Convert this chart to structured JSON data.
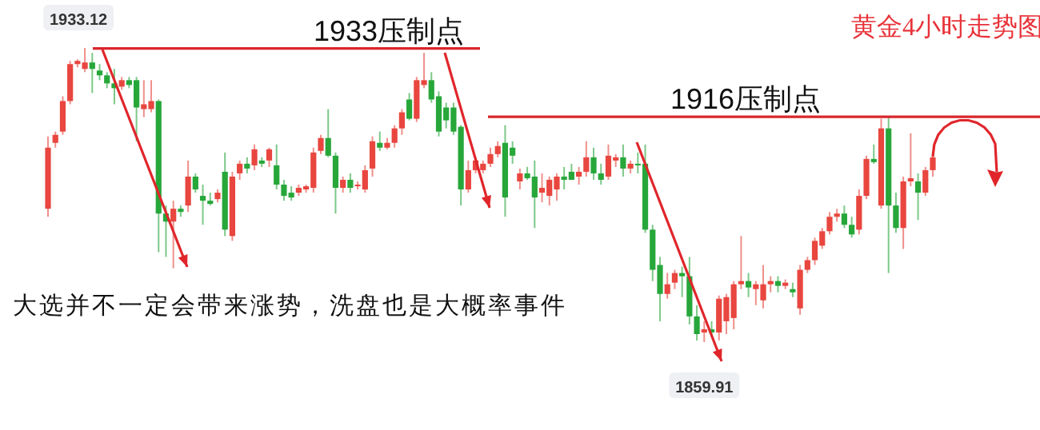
{
  "chart_data": {
    "type": "candlestick",
    "title": "黄金4小时走势图",
    "categories": [
      null,
      null,
      null,
      null,
      null,
      null,
      null,
      null,
      null,
      null,
      null,
      null,
      null,
      null,
      null,
      null,
      null,
      null,
      null,
      null,
      null,
      null,
      null,
      null,
      null,
      null,
      null,
      null,
      null,
      null,
      null,
      null,
      null,
      null,
      null,
      null,
      null,
      null,
      null,
      null,
      null,
      null,
      null,
      null,
      null,
      null,
      null,
      null,
      null,
      null,
      null,
      null,
      null,
      null,
      null,
      null,
      null,
      null,
      null,
      null,
      null,
      null,
      null,
      null,
      null,
      null,
      null,
      null,
      null,
      null,
      null,
      null,
      null,
      null,
      null,
      null,
      null,
      null,
      null,
      null,
      null,
      null,
      null,
      null,
      null,
      null,
      null,
      null,
      null,
      null,
      null,
      null,
      null,
      null,
      null,
      null,
      null,
      null,
      null,
      null,
      null,
      null,
      null,
      null,
      null,
      null,
      null,
      null,
      null,
      null,
      null,
      null,
      null,
      null,
      null,
      null,
      null,
      null,
      null,
      null,
      null
    ],
    "ohlc": [
      [
        1893.1,
        1911.1,
        1891.1,
        1908.3
      ],
      [
        1909.5,
        1912.3,
        1908.3,
        1911.5
      ],
      [
        1912.3,
        1921.1,
        1911.5,
        1919.9
      ],
      [
        1919.9,
        1929.9,
        1919.1,
        1929.1
      ],
      [
        1929.1,
        1930.3,
        1928.3,
        1929.9
      ],
      [
        1927.9,
        1933.12,
        1927.1,
        1929.5
      ],
      [
        1929.5,
        1931.9,
        1921.9,
        1927.9
      ],
      [
        1927.5,
        1929.1,
        1925.1,
        1926.3
      ],
      [
        1926.3,
        1927.1,
        1923.1,
        1924.3
      ],
      [
        1924.3,
        1927.9,
        1919.1,
        1923.1
      ],
      [
        1923.5,
        1925.9,
        1922.7,
        1925.1
      ],
      [
        1925.1,
        1925.9,
        1923.1,
        1923.9
      ],
      [
        1925.1,
        1925.9,
        1909.9,
        1918.3
      ],
      [
        1917.9,
        1925.1,
        1915.9,
        1919.1
      ],
      [
        1917.9,
        1925.1,
        1917.1,
        1919.9
      ],
      [
        1919.9,
        1920.3,
        1882.3,
        1891.9
      ],
      [
        1891.9,
        1893.9,
        1881.1,
        1889.9
      ],
      [
        1889.9,
        1895.1,
        1878.3,
        1893.1
      ],
      [
        1893.1,
        1893.9,
        1891.1,
        1892.3
      ],
      [
        1893.9,
        1905.1,
        1892.3,
        1901.1
      ],
      [
        1901.1,
        1901.9,
        1897.1,
        1897.9
      ],
      [
        1896.3,
        1899.1,
        1889.1,
        1895.1
      ],
      [
        1895.1,
        1897.1,
        1893.9,
        1894.3
      ],
      [
        1895.5,
        1897.9,
        1894.7,
        1897.1
      ],
      [
        1902.3,
        1907.1,
        1886.3,
        1887.9
      ],
      [
        1886.3,
        1902.3,
        1885.1,
        1901.1
      ],
      [
        1901.9,
        1905.1,
        1900.3,
        1904.3
      ],
      [
        1904.3,
        1905.9,
        1901.9,
        1903.1
      ],
      [
        1903.9,
        1909.1,
        1902.7,
        1907.9
      ],
      [
        1905.1,
        1905.9,
        1903.5,
        1904.3
      ],
      [
        1905.1,
        1908.3,
        1903.5,
        1907.9
      ],
      [
        1903.9,
        1909.1,
        1897.9,
        1899.1
      ],
      [
        1899.1,
        1900.3,
        1895.1,
        1896.3
      ],
      [
        1897.1,
        1898.7,
        1895.1,
        1895.9
      ],
      [
        1897.1,
        1899.1,
        1896.3,
        1898.3
      ],
      [
        1897.9,
        1899.1,
        1897.1,
        1898.7
      ],
      [
        1898.3,
        1908.3,
        1897.1,
        1907.1
      ],
      [
        1907.5,
        1911.5,
        1906.7,
        1910.7
      ],
      [
        1910.7,
        1917.9,
        1905.9,
        1906.3
      ],
      [
        1906.3,
        1907.1,
        1891.9,
        1898.3
      ],
      [
        1898.3,
        1901.1,
        1897.1,
        1900.3
      ],
      [
        1900.3,
        1901.9,
        1897.1,
        1898.3
      ],
      [
        1898.7,
        1899.9,
        1897.9,
        1899.1
      ],
      [
        1897.9,
        1903.9,
        1897.1,
        1902.7
      ],
      [
        1903.1,
        1911.1,
        1901.1,
        1909.9
      ],
      [
        1909.5,
        1912.3,
        1907.5,
        1908.3
      ],
      [
        1908.3,
        1910.7,
        1907.9,
        1909.5
      ],
      [
        1909.5,
        1913.9,
        1908.3,
        1913.1
      ],
      [
        1913.1,
        1917.9,
        1911.5,
        1917.1
      ],
      [
        1920.3,
        1921.9,
        1915.1,
        1915.5
      ],
      [
        1915.5,
        1925.9,
        1914.7,
        1925.1
      ],
      [
        1923.9,
        1931.9,
        1923.1,
        1925.1
      ],
      [
        1925.1,
        1927.1,
        1919.5,
        1920.3
      ],
      [
        1921.1,
        1922.3,
        1911.1,
        1912.3
      ],
      [
        1918.3,
        1919.5,
        1913.1,
        1915.1
      ],
      [
        1918.3,
        1919.5,
        1911.5,
        1912.3
      ],
      [
        1913.5,
        1913.9,
        1893.9,
        1897.9
      ],
      [
        1897.9,
        1905.1,
        1897.1,
        1902.7
      ],
      [
        1902.7,
        1905.9,
        1901.9,
        1905.1
      ],
      [
        1902.7,
        1905.1,
        1901.9,
        1904.3
      ],
      [
        1904.3,
        1908.3,
        1903.5,
        1906.7
      ],
      [
        1906.7,
        1909.9,
        1905.9,
        1908.7
      ],
      [
        1909.5,
        1913.9,
        1891.1,
        1895.9
      ],
      [
        1908.3,
        1909.9,
        1904.3,
        1906.3
      ],
      [
        1899.9,
        1903.1,
        1897.9,
        1901.9
      ],
      [
        1901.9,
        1903.5,
        1900.3,
        1900.7
      ],
      [
        1901.1,
        1905.1,
        1888.3,
        1895.9
      ],
      [
        1897.1,
        1901.9,
        1894.7,
        1898.3
      ],
      [
        1896.3,
        1901.1,
        1893.9,
        1900.3
      ],
      [
        1897.9,
        1901.9,
        1895.1,
        1901.1
      ],
      [
        1901.1,
        1903.5,
        1897.9,
        1900.3
      ],
      [
        1902.3,
        1904.3,
        1900.3,
        1900.3
      ],
      [
        1901.1,
        1903.5,
        1899.1,
        1902.3
      ],
      [
        1902.3,
        1909.9,
        1901.1,
        1905.9
      ],
      [
        1905.9,
        1908.3,
        1900.3,
        1901.9
      ],
      [
        1901.9,
        1904.3,
        1899.1,
        1900.3
      ],
      [
        1901.1,
        1909.1,
        1900.3,
        1906.3
      ],
      [
        1905.1,
        1906.7,
        1903.5,
        1905.9
      ],
      [
        1905.9,
        1909.1,
        1901.1,
        1903.1
      ],
      [
        1903.1,
        1905.1,
        1901.9,
        1904.3
      ],
      [
        1904.3,
        1907.1,
        1901.9,
        1903.9
      ],
      [
        1904.3,
        1909.1,
        1887.1,
        1887.9
      ],
      [
        1887.9,
        1889.1,
        1875.1,
        1877.9
      ],
      [
        1879.1,
        1881.1,
        1865.1,
        1871.9
      ],
      [
        1871.9,
        1877.1,
        1870.7,
        1874.3
      ],
      [
        1874.7,
        1877.9,
        1873.1,
        1877.1
      ],
      [
        1877.1,
        1878.7,
        1871.1,
        1876.3
      ],
      [
        1876.3,
        1881.1,
        1864.3,
        1866.3
      ],
      [
        1866.3,
        1869.1,
        1860.3,
        1861.9
      ],
      [
        1862.3,
        1865.1,
        1859.91,
        1863.1
      ],
      [
        1863.1,
        1865.1,
        1861.1,
        1862.3
      ],
      [
        1862.3,
        1871.5,
        1860.3,
        1870.7
      ],
      [
        1865.1,
        1871.9,
        1861.9,
        1871.1
      ],
      [
        1865.9,
        1875.1,
        1863.1,
        1874.3
      ],
      [
        1874.3,
        1886.3,
        1873.1,
        1875.1
      ],
      [
        1875.1,
        1877.1,
        1871.1,
        1873.5
      ],
      [
        1873.1,
        1875.1,
        1869.1,
        1874.3
      ],
      [
        1870.3,
        1879.1,
        1868.3,
        1874.3
      ],
      [
        1874.3,
        1876.3,
        1872.3,
        1875.1
      ],
      [
        1875.1,
        1876.3,
        1872.3,
        1873.9
      ],
      [
        1873.9,
        1875.5,
        1873.1,
        1874.7
      ],
      [
        1873.1,
        1874.7,
        1871.1,
        1872.3
      ],
      [
        1868.3,
        1879.1,
        1866.7,
        1877.9
      ],
      [
        1877.9,
        1881.1,
        1877.1,
        1880.3
      ],
      [
        1880.3,
        1885.9,
        1879.1,
        1885.1
      ],
      [
        1883.9,
        1888.3,
        1883.1,
        1887.5
      ],
      [
        1887.5,
        1892.3,
        1886.7,
        1891.1
      ],
      [
        1891.1,
        1893.1,
        1889.9,
        1891.9
      ],
      [
        1891.9,
        1893.9,
        1888.3,
        1889.1
      ],
      [
        1889.1,
        1891.1,
        1885.9,
        1886.7
      ],
      [
        1887.9,
        1897.9,
        1886.7,
        1896.3
      ],
      [
        1896.3,
        1906.3,
        1895.5,
        1905.5
      ],
      [
        1905.5,
        1909.1,
        1904.3,
        1904.7
      ],
      [
        1893.9,
        1915.5,
        1893.1,
        1913.1
      ],
      [
        1913.1,
        1915.9,
        1877.1,
        1893.9
      ],
      [
        1893.9,
        1897.1,
        1887.1,
        1888.3
      ],
      [
        1888.3,
        1901.1,
        1883.1,
        1899.9
      ],
      [
        1899.9,
        1911.9,
        1898.7,
        1900.7
      ],
      [
        1899.9,
        1901.9,
        1890.3,
        1897.1
      ],
      [
        1897.1,
        1903.5,
        1896.3,
        1902.7
      ],
      [
        1902.7,
        1907.1,
        1901.1,
        1905.9
      ]
    ],
    "ref_lines": [
      {
        "axis": "y",
        "value": 1933,
        "label": "1933压制点",
        "color": "#d9262b"
      },
      {
        "axis": "y",
        "value": 1916,
        "label": "1916压制点",
        "color": "#d9262b"
      }
    ],
    "annotations": [
      {
        "text": "1933.12",
        "y": 1933.12
      },
      {
        "text": "1859.91",
        "y": 1859.91
      },
      "大选并不一定会带来涨势，洗盘也是大概率事件"
    ]
  }
}
